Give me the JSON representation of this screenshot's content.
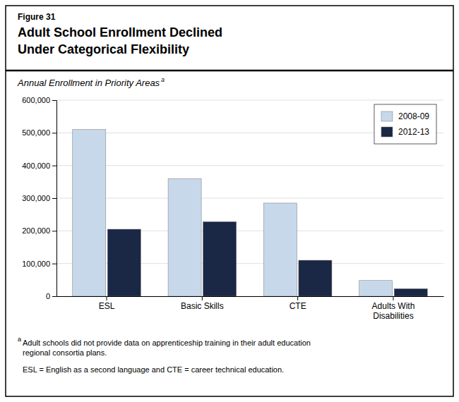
{
  "chart_data": {
    "type": "bar",
    "title": "Adult School Enrollment Declined\nUnder Categorical Flexibility",
    "subtitle": "Annual Enrollment in Priority Areas",
    "annotations": [
      "Figure 31",
      "a",
      "a",
      "Adult schools did not provide data on apprenticeship training in their adult education\nregional consortia plans.",
      "ESL = English as a second language and CTE = career technical education."
    ],
    "categories": [
      "ESL",
      "Basic Skills",
      "CTE",
      "Adults With\nDisabilities"
    ],
    "series": [
      {
        "name": "2008-09",
        "color": "#c8d8eb",
        "values": [
          510000,
          360000,
          285000,
          48000
        ]
      },
      {
        "name": "2012-13",
        "color": "#1a2745",
        "values": [
          205000,
          228000,
          110000,
          23000
        ]
      }
    ],
    "ylim": [
      0,
      600000
    ],
    "yticks": [
      0,
      {
        "value": 100000,
        "label": "100,000"
      },
      {
        "value": 200000,
        "label": "200,000"
      },
      {
        "value": 300000,
        "label": "300,000"
      },
      {
        "value": 400000,
        "label": "400,000"
      },
      {
        "value": 500000,
        "label": "500,000"
      },
      {
        "value": 600000,
        "label": "600,000"
      }
    ],
    "grid": true,
    "legend": "upper right"
  }
}
